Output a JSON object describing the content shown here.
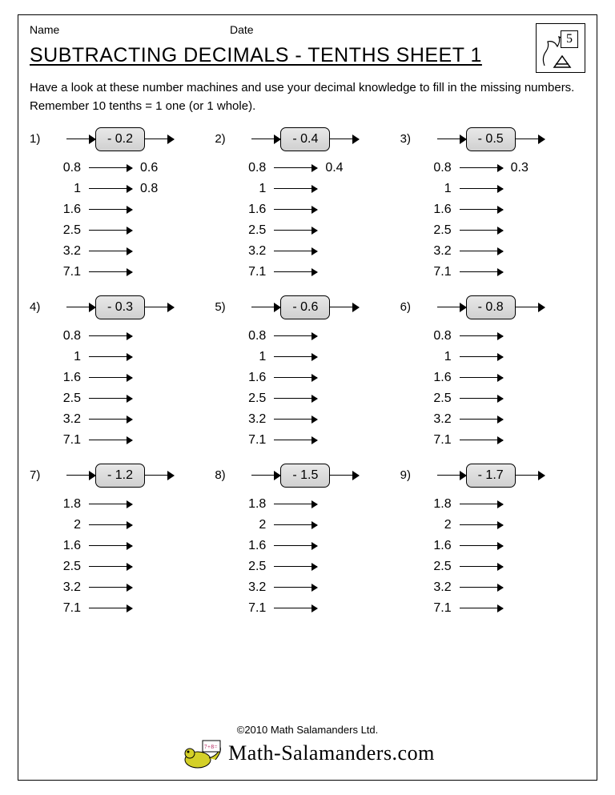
{
  "header": {
    "name_label": "Name",
    "date_label": "Date",
    "title": "SUBTRACTING DECIMALS - TENTHS SHEET 1",
    "grade_badge": "5"
  },
  "instructions": "Have a look at these number machines and use your decimal knowledge to fill in the missing numbers. Remember 10 tenths = 1 one (or 1 whole).",
  "problems": [
    {
      "n": "1)",
      "op": "- 0.2",
      "rows": [
        {
          "in": "0.8",
          "out": "0.6"
        },
        {
          "in": "1",
          "out": "0.8"
        },
        {
          "in": "1.6",
          "out": ""
        },
        {
          "in": "2.5",
          "out": ""
        },
        {
          "in": "3.2",
          "out": ""
        },
        {
          "in": "7.1",
          "out": ""
        }
      ]
    },
    {
      "n": "2)",
      "op": "- 0.4",
      "rows": [
        {
          "in": "0.8",
          "out": "0.4"
        },
        {
          "in": "1",
          "out": ""
        },
        {
          "in": "1.6",
          "out": ""
        },
        {
          "in": "2.5",
          "out": ""
        },
        {
          "in": "3.2",
          "out": ""
        },
        {
          "in": "7.1",
          "out": ""
        }
      ]
    },
    {
      "n": "3)",
      "op": "- 0.5",
      "rows": [
        {
          "in": "0.8",
          "out": "0.3"
        },
        {
          "in": "1",
          "out": ""
        },
        {
          "in": "1.6",
          "out": ""
        },
        {
          "in": "2.5",
          "out": ""
        },
        {
          "in": "3.2",
          "out": ""
        },
        {
          "in": "7.1",
          "out": ""
        }
      ]
    },
    {
      "n": "4)",
      "op": "- 0.3",
      "rows": [
        {
          "in": "0.8",
          "out": ""
        },
        {
          "in": "1",
          "out": ""
        },
        {
          "in": "1.6",
          "out": ""
        },
        {
          "in": "2.5",
          "out": ""
        },
        {
          "in": "3.2",
          "out": ""
        },
        {
          "in": "7.1",
          "out": ""
        }
      ]
    },
    {
      "n": "5)",
      "op": "- 0.6",
      "rows": [
        {
          "in": "0.8",
          "out": ""
        },
        {
          "in": "1",
          "out": ""
        },
        {
          "in": "1.6",
          "out": ""
        },
        {
          "in": "2.5",
          "out": ""
        },
        {
          "in": "3.2",
          "out": ""
        },
        {
          "in": "7.1",
          "out": ""
        }
      ]
    },
    {
      "n": "6)",
      "op": "- 0.8",
      "rows": [
        {
          "in": "0.8",
          "out": ""
        },
        {
          "in": "1",
          "out": ""
        },
        {
          "in": "1.6",
          "out": ""
        },
        {
          "in": "2.5",
          "out": ""
        },
        {
          "in": "3.2",
          "out": ""
        },
        {
          "in": "7.1",
          "out": ""
        }
      ]
    },
    {
      "n": "7)",
      "op": "- 1.2",
      "rows": [
        {
          "in": "1.8",
          "out": ""
        },
        {
          "in": "2",
          "out": ""
        },
        {
          "in": "1.6",
          "out": ""
        },
        {
          "in": "2.5",
          "out": ""
        },
        {
          "in": "3.2",
          "out": ""
        },
        {
          "in": "7.1",
          "out": ""
        }
      ]
    },
    {
      "n": "8)",
      "op": "- 1.5",
      "rows": [
        {
          "in": "1.8",
          "out": ""
        },
        {
          "in": "2",
          "out": ""
        },
        {
          "in": "1.6",
          "out": ""
        },
        {
          "in": "2.5",
          "out": ""
        },
        {
          "in": "3.2",
          "out": ""
        },
        {
          "in": "7.1",
          "out": ""
        }
      ]
    },
    {
      "n": "9)",
      "op": "- 1.7",
      "rows": [
        {
          "in": "1.8",
          "out": ""
        },
        {
          "in": "2",
          "out": ""
        },
        {
          "in": "1.6",
          "out": ""
        },
        {
          "in": "2.5",
          "out": ""
        },
        {
          "in": "3.2",
          "out": ""
        },
        {
          "in": "7.1",
          "out": ""
        }
      ]
    }
  ],
  "footer": {
    "copyright": "©2010 Math Salamanders Ltd.",
    "brand": "Math-Salamanders.com"
  },
  "style": {
    "page_bg": "#ffffff",
    "border_color": "#000000",
    "opbox_gradient_top": "#e8e8e8",
    "opbox_gradient_bottom": "#d0d0d0",
    "title_fontsize": 25,
    "body_fontsize": 15,
    "grid_cols": 3,
    "grid_rows": 3
  }
}
